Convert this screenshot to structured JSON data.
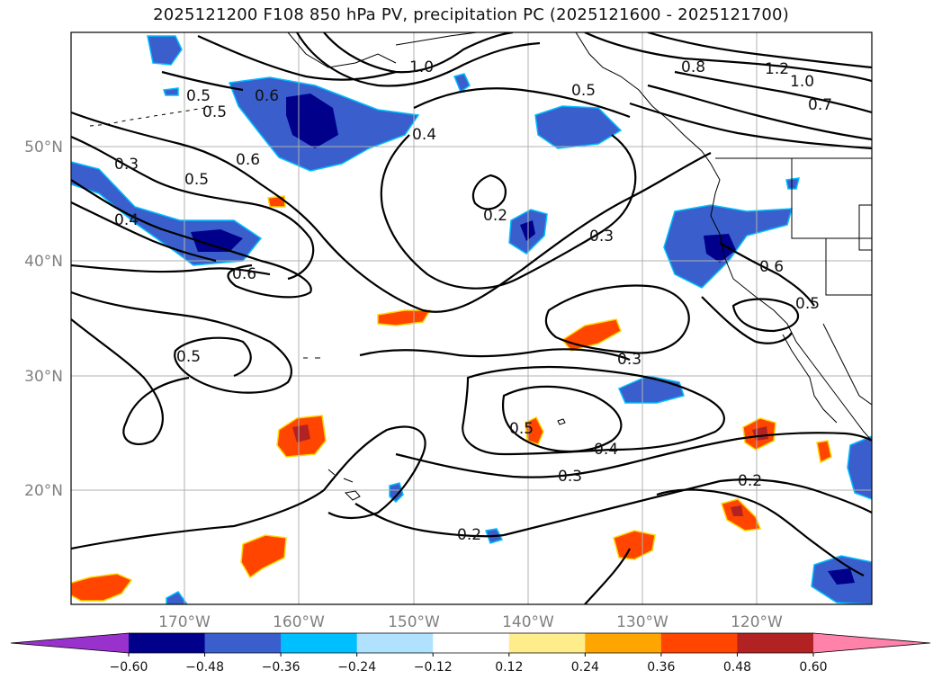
{
  "figure": {
    "title": "2025121200 F108 850 hPa PV, precipitation PC (2025121600 - 2025121700)"
  },
  "map": {
    "lon_ticks": [
      "170°W",
      "160°W",
      "150°W",
      "140°W",
      "130°W",
      "120°W"
    ],
    "lat_ticks": [
      "50°N",
      "40°N",
      "30°N",
      "20°N"
    ],
    "contour_labels": [
      "0.5",
      "0.6",
      "0.5",
      "0.3",
      "0.5",
      "0.4",
      "0.6",
      "0.6",
      "0.5",
      "0.2",
      "0.3",
      "0.3",
      "0.5",
      "0.4",
      "0.3",
      "0.2",
      "0.2",
      "0.8",
      "1.2",
      "1.0",
      "0.7",
      "0.5",
      "1.0",
      "0.4",
      "0.6",
      "0.5"
    ]
  },
  "colorbar": {
    "tick_labels": [
      "−0.60",
      "−0.48",
      "−0.36",
      "−0.24",
      "−0.12",
      "0.12",
      "0.24",
      "0.36",
      "0.48",
      "0.60"
    ],
    "colors": [
      "#9932cc",
      "#00008b",
      "#3a5fcd",
      "#00bfff",
      "#b0e2ff",
      "#ffffff",
      "#ffec8b",
      "#ffa500",
      "#ff4500",
      "#b22222",
      "#ff82ab"
    ]
  },
  "colors": {
    "contour": "#000000",
    "coast": "#000000",
    "grid": "#b0b0b0"
  }
}
